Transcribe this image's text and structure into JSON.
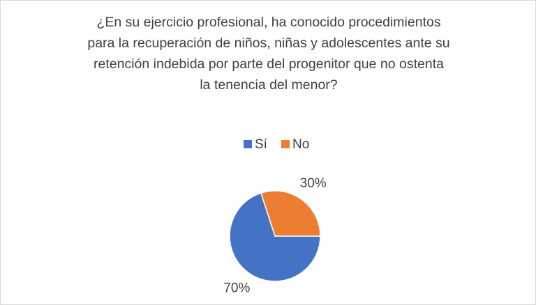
{
  "chart_data": {
    "type": "pie",
    "title": "¿En su ejercicio profesional, ha conocido procedimientos para la recuperación de niños, niñas y adolescentes ante su retención indebida por parte del progenitor que no ostenta la tenencia del menor?",
    "categories": [
      "Sí",
      "No"
    ],
    "values": [
      70,
      30
    ],
    "value_labels": [
      "70%",
      "30%"
    ],
    "colors": [
      "#4472c4",
      "#ed7d31"
    ],
    "legend": "top"
  }
}
